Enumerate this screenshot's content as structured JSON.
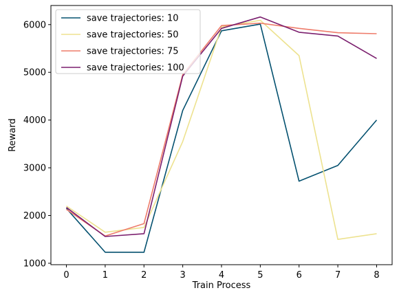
{
  "chart_data": {
    "type": "line",
    "title": "",
    "xlabel": "Train Process",
    "ylabel": "Reward",
    "x": [
      0,
      1,
      2,
      3,
      4,
      5,
      6,
      7,
      8
    ],
    "xlim": [
      -0.4,
      8.4
    ],
    "ylim": [
      970,
      6400
    ],
    "xticks": [
      "0",
      "1",
      "2",
      "3",
      "4",
      "5",
      "6",
      "7",
      "8"
    ],
    "yticks": [
      "1000",
      "2000",
      "3000",
      "4000",
      "5000",
      "6000"
    ],
    "ytick_values": [
      1000,
      2000,
      3000,
      4000,
      5000,
      6000
    ],
    "grid": false,
    "legend_position": "top-left",
    "series": [
      {
        "name": "save trajectories: 10",
        "color": "#03506f",
        "values": [
          2150,
          1230,
          1230,
          4200,
          5870,
          6010,
          2720,
          3050,
          4000
        ]
      },
      {
        "name": "save trajectories: 50",
        "color": "#ede28f",
        "values": [
          2200,
          1650,
          1750,
          3550,
          5950,
          6090,
          5350,
          1500,
          1620
        ]
      },
      {
        "name": "save trajectories: 75",
        "color": "#ee7b6a",
        "values": [
          2130,
          1570,
          1830,
          4950,
          5980,
          6030,
          5920,
          5830,
          5810
        ]
      },
      {
        "name": "save trajectories: 100",
        "color": "#7b1f6e",
        "values": [
          2170,
          1560,
          1620,
          4920,
          5920,
          6160,
          5840,
          5760,
          5290
        ]
      }
    ]
  }
}
